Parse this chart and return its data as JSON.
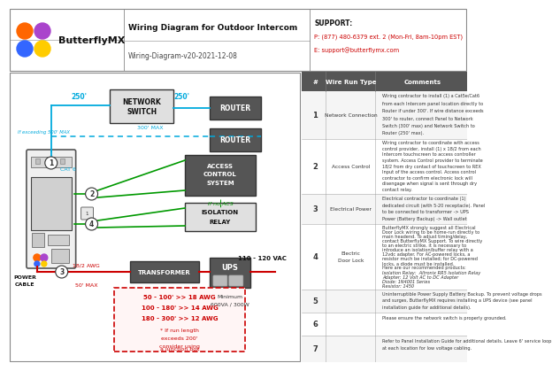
{
  "title": "Wiring Diagram for Outdoor Intercom",
  "subtitle": "Wiring-Diagram-v20-2021-12-08",
  "support_text": "SUPPORT:",
  "support_phone": "P: (877) 480-6379 ext. 2 (Mon-Fri, 8am-10pm EST)",
  "support_email": "E: support@butterflymx.com",
  "bg_color": "#ffffff",
  "cyan_color": "#00aadd",
  "green_color": "#009900",
  "red_color": "#cc0000",
  "logo_colors": [
    "#ff6600",
    "#aa44cc",
    "#3366ff",
    "#ffcc00"
  ],
  "table_rows": [
    {
      "num": "1",
      "type": "Network Connection",
      "comment": "Wiring contractor to install (1) a Cat5e/Cat6\nfrom each Intercom panel location directly to\nRouter if under 300'. If wire distance exceeds\n300' to router, connect Panel to Network\nSwitch (300' max) and Network Switch to\nRouter (250' max)."
    },
    {
      "num": "2",
      "type": "Access Control",
      "comment": "Wiring contractor to coordinate with access\ncontrol provider, install (1) x 18/2 from each\nIntercom touchscreen to access controller\nsystem. Access Control provider to terminate\n18/2 from dry contact of touchscreen to REX\nInput of the access control. Access control\ncontractor to confirm electronic lock will\ndisengage when signal is sent through dry\ncontact relay."
    },
    {
      "num": "3",
      "type": "Electrical Power",
      "comment": "Electrical contractor to coordinate (1)\ndedicated circuit (with 5-20 receptacle). Panel\nto be connected to transformer -> UPS\nPower (Battery Backup) -> Wall outlet"
    },
    {
      "num": "4",
      "type": "Electric Door Lock",
      "comment": "ButterflyMX strongly suggest all Electrical\nDoor Lock wiring to be home-run directly to\nmain headend. To adjust timing/delay,\ncontact ButterflyMX Support. To wire directly\nto an electric strike, it is necessary to\nintroduce an isolation/buffer relay with a\n12vdc adapter. For AC-powered locks, a\nresistor much be installed; for DC-powered\nlocks, a diode must be installed.\nHere are our recommended products:\nIsolation Relay:  Altronix RR5 Isolation Relay\nAdapter: 12 Volt AC to DC Adapter\nDiode: 1N4001 Series\nResistor: 1450"
    },
    {
      "num": "5",
      "type": "",
      "comment": "Uninterruptible Power Supply Battery Backup. To prevent voltage drops\nand surges, ButterflyMX requires installing a UPS device (see panel\ninstallation guide for additional details)."
    },
    {
      "num": "6",
      "type": "",
      "comment": "Please ensure the network switch is properly grounded."
    },
    {
      "num": "7",
      "type": "",
      "comment": "Refer to Panel Installation Guide for additional details. Leave 6' service loop\nat each location for low voltage cabling."
    }
  ]
}
